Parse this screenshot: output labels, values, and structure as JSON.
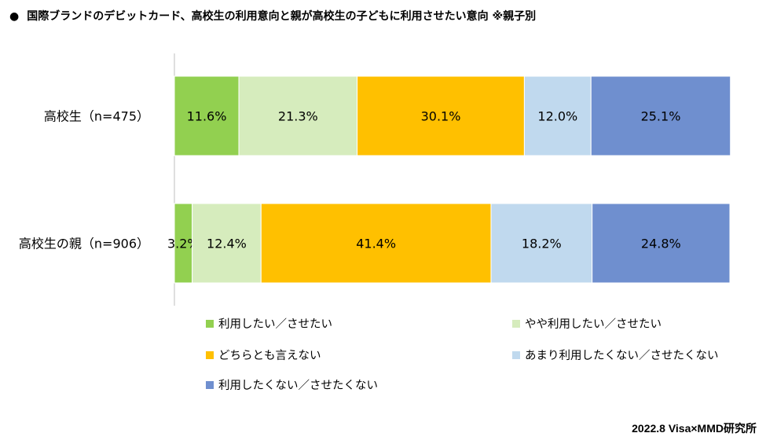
{
  "header": {
    "bullet": "●",
    "title": "国際ブランドのデビットカード、高校生の利用意向と親が高校生の子どもに利用させたい意向 ※親子別"
  },
  "footer": {
    "credit": "2022.8 Visa×MMD研究所"
  },
  "chart_data": {
    "type": "bar",
    "orientation": "horizontal",
    "stacked": "percent",
    "categories": [
      "高校生（n=475）",
      "高校生の親（n=906）"
    ],
    "series": [
      {
        "name": "利用したい／させたい",
        "color": "#92d050",
        "values": [
          11.6,
          3.2
        ]
      },
      {
        "name": "やや利用したい／させたい",
        "color": "#d6ecbd",
        "values": [
          21.3,
          12.4
        ]
      },
      {
        "name": "どちらとも言えない",
        "color": "#ffc000",
        "values": [
          30.1,
          41.4
        ]
      },
      {
        "name": "あまり利用したくない／させたくない",
        "color": "#c0d9ee",
        "values": [
          12.0,
          18.2
        ]
      },
      {
        "name": "利用したくない／させたくない",
        "color": "#6f8fcf",
        "values": [
          25.1,
          24.8
        ]
      }
    ],
    "value_labels": [
      [
        "11.6%",
        "21.3%",
        "30.1%",
        "12.0%",
        "25.1%"
      ],
      [
        "3.2%",
        "12.4%",
        "41.4%",
        "18.2%",
        "24.8%"
      ]
    ],
    "xlim": [
      0,
      100
    ],
    "grid": false,
    "legend_position": "bottom"
  }
}
